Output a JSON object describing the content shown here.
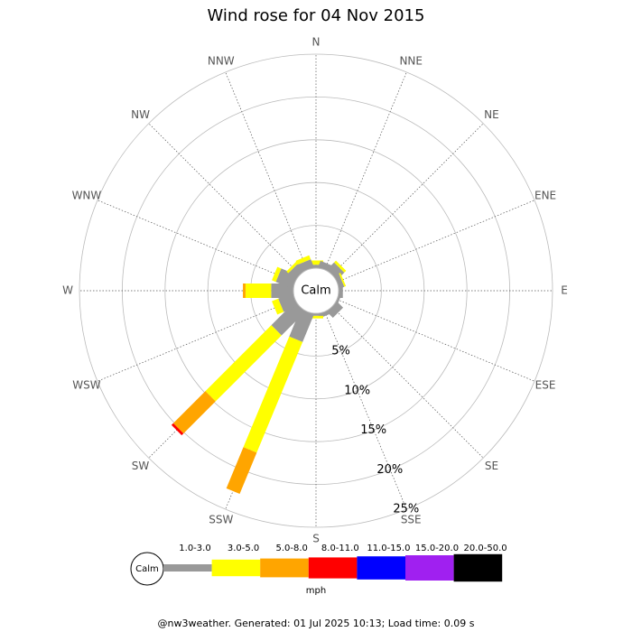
{
  "chart_data": {
    "type": "windrose",
    "title": "Wind rose for 04 Nov 2015",
    "categories": [
      "N",
      "NNE",
      "NE",
      "ENE",
      "E",
      "ESE",
      "SE",
      "SSE",
      "S",
      "SSW",
      "SW",
      "WSW",
      "W",
      "WNW",
      "NW",
      "NNW"
    ],
    "series": [
      {
        "name": "1.0-3.0",
        "color": "#999999",
        "values": [
          0.4,
          0.8,
          1.2,
          0.6,
          0.5,
          0.3,
          1.0,
          0.5,
          0.3,
          3.5,
          3.9,
          1.8,
          2.6,
          2.1,
          1.1,
          1.0
        ]
      },
      {
        "name": "3.0-5.0",
        "color": "#ffff00",
        "values": [
          0.5,
          0,
          0.3,
          0.2,
          0,
          0,
          0,
          0,
          0.3,
          14.0,
          10.9,
          0.8,
          3.0,
          0.5,
          0.3,
          0.5
        ]
      },
      {
        "name": "5.0-8.0",
        "color": "#ffa500",
        "values": [
          0,
          0,
          0,
          0,
          0,
          0,
          0,
          0,
          0,
          5.2,
          5.3,
          0,
          0.3,
          0,
          0,
          0
        ]
      },
      {
        "name": "8.0-11.0",
        "color": "#ff0000",
        "values": [
          0,
          0,
          0,
          0,
          0,
          0,
          0,
          0,
          0,
          0,
          0.3,
          0,
          0,
          0,
          0,
          0
        ]
      },
      {
        "name": "11.0-15.0",
        "color": "#0000ff",
        "values": [
          0,
          0,
          0,
          0,
          0,
          0,
          0,
          0,
          0,
          0,
          0,
          0,
          0,
          0,
          0,
          0
        ]
      },
      {
        "name": "15.0-20.0",
        "color": "#a020f0",
        "values": [
          0,
          0,
          0,
          0,
          0,
          0,
          0,
          0,
          0,
          0,
          0,
          0,
          0,
          0,
          0,
          0
        ]
      },
      {
        "name": "20.0-50.0",
        "color": "#000000",
        "values": [
          0,
          0,
          0,
          0,
          0,
          0,
          0,
          0,
          0,
          0,
          0,
          0,
          0,
          0,
          0,
          0
        ]
      }
    ],
    "rlim": [
      0,
      25
    ],
    "rticks": [
      {
        "value": 5,
        "label": "5%"
      },
      {
        "value": 10,
        "label": "10%"
      },
      {
        "value": 15,
        "label": "15%"
      },
      {
        "value": 20,
        "label": "20%"
      },
      {
        "value": 25,
        "label": "25%"
      }
    ],
    "calm_label": "Calm",
    "unit_label": "mph",
    "footer": "@nw3weather. Generated: 01 Jul 2025 10:13; Load time: 0.09 s"
  }
}
